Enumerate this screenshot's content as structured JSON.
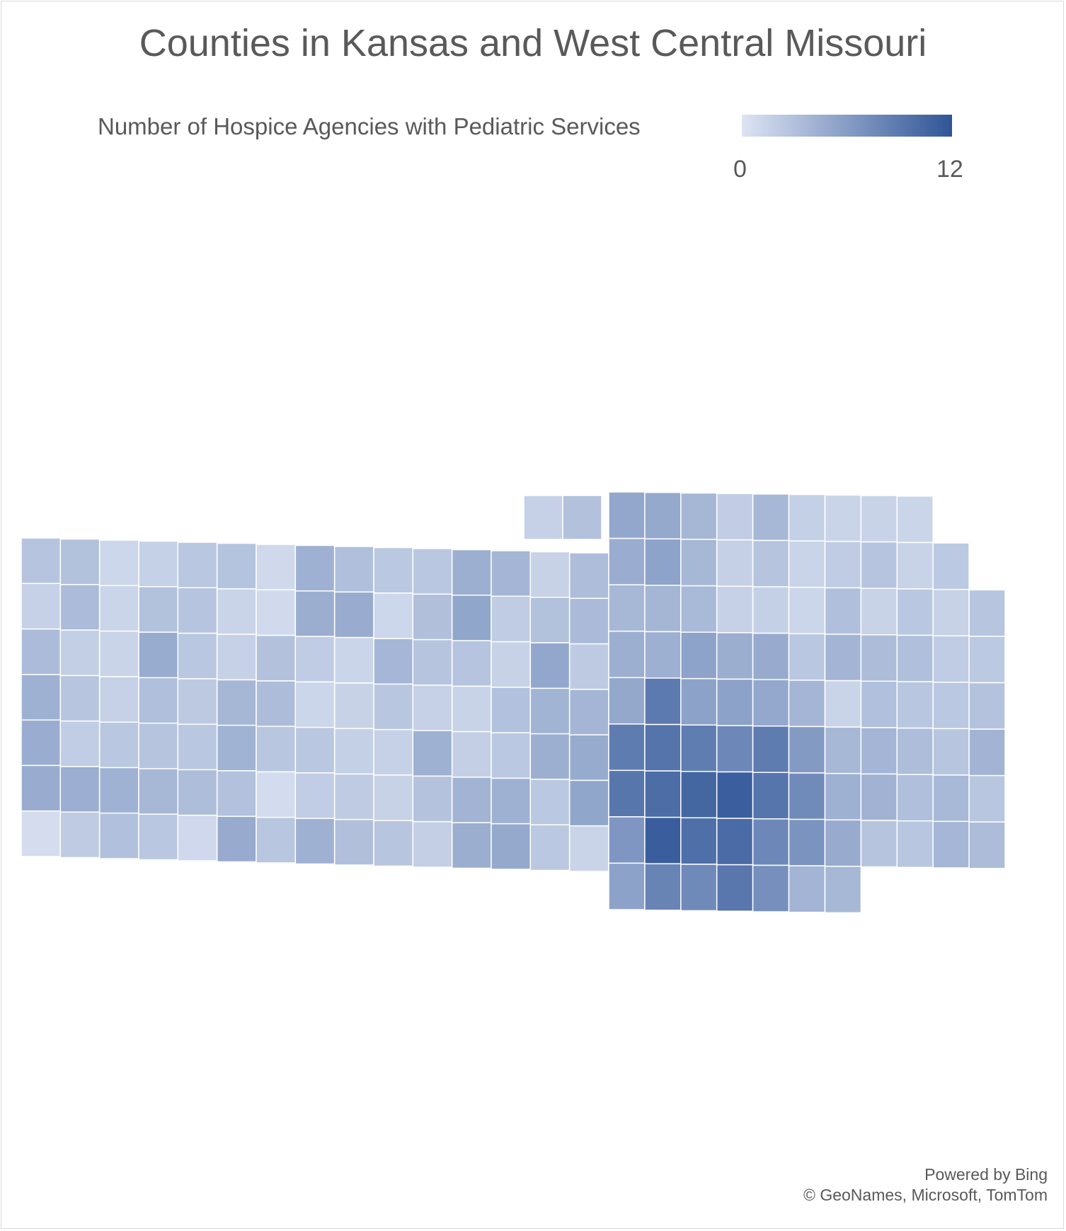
{
  "title": "Counties in Kansas and West Central Missouri",
  "legend": {
    "label": "Number of Hospice Agencies with Pediatric Services",
    "min_label": "0",
    "max_label": "12",
    "min": 0,
    "max": 12,
    "color_low": "#dde4f3",
    "color_high": "#2f5597"
  },
  "map": {
    "regions": [
      "Kansas",
      "West Central Missouri"
    ],
    "border_color": "#ffffff"
  },
  "credits": {
    "line1": "Powered by Bing",
    "line2": "© GeoNames, Microsoft, TomTom"
  }
}
